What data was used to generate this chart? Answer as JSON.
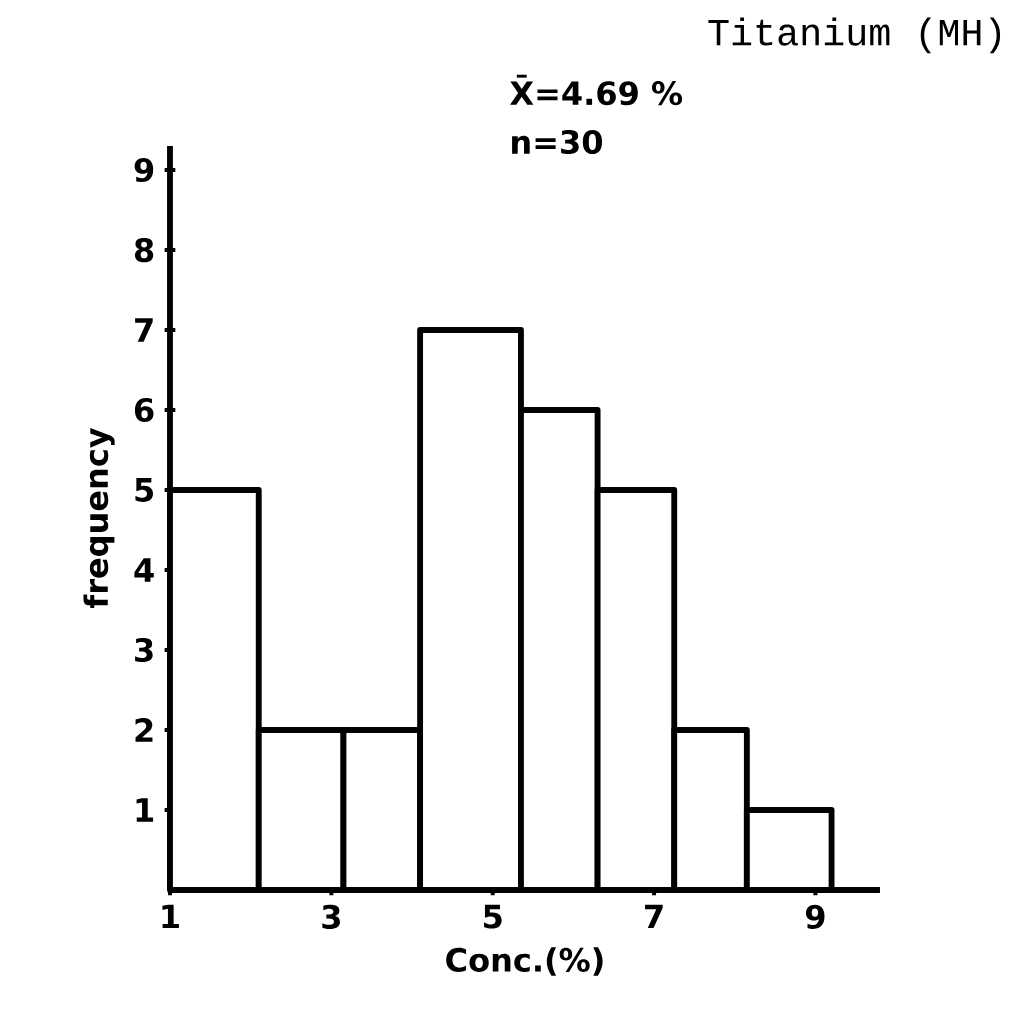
{
  "chart_data": {
    "type": "histogram",
    "title": "Titanium (MH)",
    "xlabel": "Conc.(%)",
    "ylabel": "frequency",
    "annotations": [
      "X̄=4.69 %",
      "n=30"
    ],
    "bins": [
      1,
      2.1,
      3.15,
      4.1,
      5.35,
      6.3,
      7.25,
      8.15,
      9.2
    ],
    "values": [
      5,
      2,
      2,
      7,
      6,
      5,
      2,
      1
    ],
    "color": "#ffffff",
    "xlim": [
      1,
      9.8
    ],
    "ylim": [
      0,
      9.3
    ],
    "xticks": [
      1,
      3,
      5,
      7,
      9
    ],
    "yticks": [
      1,
      2,
      3,
      4,
      5,
      6,
      7,
      8,
      9
    ],
    "grid": false
  }
}
